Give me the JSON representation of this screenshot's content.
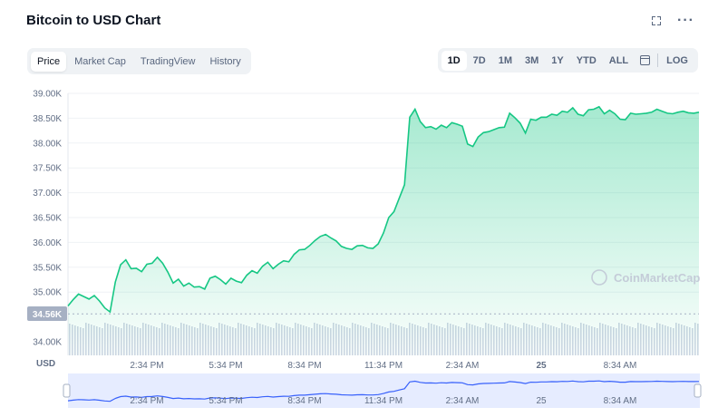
{
  "title": "Bitcoin to USD Chart",
  "icons": {
    "fullscreen": "fullscreen-icon",
    "more": "more-icon",
    "calendar": "calendar-icon"
  },
  "more_glyph": "···",
  "tabs": [
    {
      "label": "Price",
      "active": true
    },
    {
      "label": "Market Cap",
      "active": false
    },
    {
      "label": "TradingView",
      "active": false
    },
    {
      "label": "History",
      "active": false
    }
  ],
  "ranges": [
    {
      "label": "1D",
      "active": true
    },
    {
      "label": "7D",
      "active": false
    },
    {
      "label": "1M",
      "active": false
    },
    {
      "label": "3M",
      "active": false
    },
    {
      "label": "1Y",
      "active": false
    },
    {
      "label": "YTD",
      "active": false
    },
    {
      "label": "ALL",
      "active": false
    }
  ],
  "log_label": "LOG",
  "colors": {
    "line": "#16c784",
    "area_top": "#16c784",
    "badge": "#a6b0c3",
    "volume": "#cfd6e4",
    "nav_fill": "#e6ecff",
    "nav_line": "#3861fb"
  },
  "chart_data": {
    "type": "area",
    "currency_label": "USD",
    "watermark": "CoinMarketCap",
    "start_price_label": "34.56K",
    "start_price": 34560,
    "y_ticks": [
      "39.00K",
      "38.50K",
      "38.00K",
      "37.50K",
      "37.00K",
      "36.50K",
      "36.00K",
      "35.50K",
      "35.00K",
      "34.00K"
    ],
    "y_tick_values": [
      39000,
      38500,
      38000,
      37500,
      37000,
      36500,
      36000,
      35500,
      35000,
      34000
    ],
    "ylim": [
      34000,
      39200
    ],
    "x_ticks": [
      "2:34 PM",
      "5:34 PM",
      "8:34 PM",
      "11:34 PM",
      "2:34 AM",
      "25",
      "8:34 AM"
    ],
    "x_tick_hours": [
      3,
      6,
      9,
      12,
      15,
      18,
      21
    ],
    "x_range_hours": [
      0,
      24
    ],
    "series": [
      {
        "hours": [
          0,
          0.2,
          0.4,
          0.6,
          0.8,
          1.0,
          1.2,
          1.4,
          1.6,
          1.8,
          2.0,
          2.2,
          2.4,
          2.6,
          2.8,
          3.0,
          3.2,
          3.4,
          3.6,
          3.8,
          4.0,
          4.2,
          4.4,
          4.6,
          4.8,
          5.0,
          5.2,
          5.4,
          5.6,
          5.8,
          6.0,
          6.2,
          6.4,
          6.6,
          6.8,
          7.0,
          7.2,
          7.4,
          7.6,
          7.8,
          8.0,
          8.2,
          8.4,
          8.6,
          8.8,
          9.0,
          9.2,
          9.4,
          9.6,
          9.8,
          10.0,
          10.2,
          10.4,
          10.6,
          10.8,
          11.0,
          11.2,
          11.4,
          11.6,
          11.8,
          12.0,
          12.2,
          12.4,
          12.6,
          12.8,
          13.0,
          13.2,
          13.4,
          13.6,
          13.8,
          14.0,
          14.2,
          14.4,
          14.6,
          14.8,
          15.0,
          15.2,
          15.4,
          15.6,
          15.8,
          16.0,
          16.2,
          16.4,
          16.6,
          16.8,
          17.0,
          17.2,
          17.4,
          17.6,
          17.8,
          18.0,
          18.2,
          18.4,
          18.6,
          18.8,
          19.0,
          19.2,
          19.4,
          19.6,
          19.8,
          20.0,
          20.2,
          20.4,
          20.6,
          20.8,
          21.0,
          21.2,
          21.4,
          21.6,
          21.8,
          22.0,
          22.2,
          22.4,
          22.6,
          22.8,
          23.0,
          23.2,
          23.4,
          23.6,
          23.8,
          24.0
        ],
        "prices": [
          34720,
          34850,
          34960,
          34910,
          34860,
          34930,
          34820,
          34680,
          34600,
          35200,
          35550,
          35650,
          35470,
          35480,
          35410,
          35560,
          35580,
          35700,
          35580,
          35400,
          35180,
          35260,
          35120,
          35180,
          35100,
          35110,
          35060,
          35280,
          35320,
          35250,
          35160,
          35280,
          35220,
          35190,
          35340,
          35430,
          35380,
          35520,
          35600,
          35470,
          35560,
          35630,
          35610,
          35760,
          35850,
          35860,
          35940,
          36040,
          36120,
          36160,
          36090,
          36030,
          35920,
          35880,
          35860,
          35930,
          35940,
          35890,
          35880,
          35970,
          36190,
          36500,
          36620,
          36890,
          37160,
          38520,
          38680,
          38430,
          38310,
          38330,
          38280,
          38360,
          38310,
          38410,
          38380,
          38340,
          37980,
          37930,
          38120,
          38210,
          38230,
          38270,
          38310,
          38320,
          38600,
          38510,
          38400,
          38200,
          38480,
          38460,
          38520,
          38520,
          38580,
          38560,
          38640,
          38620,
          38710,
          38580,
          38550,
          38670,
          38680,
          38730,
          38590,
          38660,
          38590,
          38480,
          38470,
          38600,
          38580,
          38590,
          38600,
          38620,
          38680,
          38640,
          38600,
          38590,
          38620,
          38640,
          38610,
          38600,
          38620
        ]
      }
    ],
    "navigator_ticks": [
      "2:34 PM",
      "5:34 PM",
      "8:34 PM",
      "11:34 PM",
      "2:34 AM",
      "25",
      "8:34 AM"
    ]
  }
}
